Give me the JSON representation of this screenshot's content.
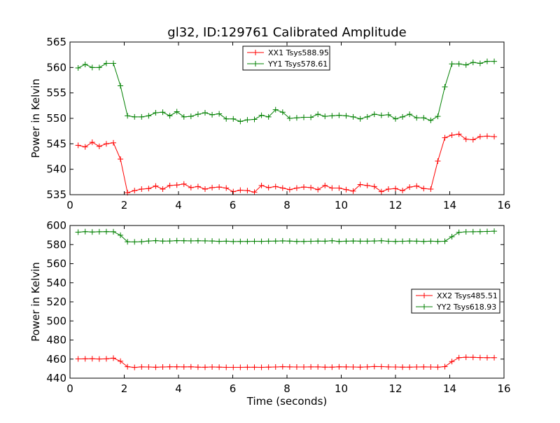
{
  "figure": {
    "title": "gl32, ID:129761 Calibrated Amplitude"
  },
  "chart_data": [
    {
      "type": "line",
      "title": "gl32, ID:129761 Calibrated Amplitude",
      "xlabel": "",
      "ylabel": "Power in Kelvin",
      "xlim": [
        0,
        16
      ],
      "ylim": [
        535,
        565
      ],
      "xticks": [
        "0",
        "2",
        "4",
        "6",
        "8",
        "10",
        "12",
        "14",
        "16"
      ],
      "yticks": [
        "535",
        "540",
        "545",
        "550",
        "555",
        "560",
        "565"
      ],
      "legend_position": "upper-center",
      "grid": false,
      "x": [
        0.3,
        0.56,
        0.82,
        1.08,
        1.34,
        1.6,
        1.86,
        2.12,
        2.38,
        2.64,
        2.9,
        3.16,
        3.42,
        3.68,
        3.94,
        4.2,
        4.46,
        4.72,
        4.98,
        5.24,
        5.5,
        5.76,
        6.02,
        6.28,
        6.54,
        6.8,
        7.06,
        7.32,
        7.58,
        7.84,
        8.1,
        8.36,
        8.62,
        8.88,
        9.14,
        9.4,
        9.66,
        9.92,
        10.18,
        10.44,
        10.7,
        10.96,
        11.22,
        11.48,
        11.74,
        12.0,
        12.26,
        12.52,
        12.78,
        13.04,
        13.3,
        13.56,
        13.82,
        14.08,
        14.34,
        14.6,
        14.86,
        15.12,
        15.38,
        15.64
      ],
      "series": [
        {
          "name": "XX1 Tsys588.95",
          "color": "#ff0000",
          "values": [
            544.7,
            544.4,
            545.3,
            544.5,
            545.0,
            545.2,
            542.0,
            535.4,
            535.8,
            536.1,
            536.2,
            536.7,
            536.1,
            536.8,
            536.9,
            537.1,
            536.4,
            536.6,
            536.1,
            536.4,
            536.5,
            536.3,
            535.6,
            535.9,
            535.8,
            535.5,
            536.8,
            536.4,
            536.6,
            536.3,
            536.0,
            536.3,
            536.5,
            536.4,
            536.0,
            536.8,
            536.3,
            536.3,
            536.0,
            535.7,
            537.0,
            536.8,
            536.6,
            535.6,
            536.1,
            536.2,
            535.8,
            536.5,
            536.7,
            536.2,
            536.1,
            541.6,
            546.2,
            546.7,
            546.9,
            545.9,
            545.8,
            546.4,
            546.5,
            546.4
          ]
        },
        {
          "name": "YY1 Tsys578.61",
          "color": "#008000",
          "values": [
            559.9,
            560.6,
            560.0,
            560.0,
            560.8,
            560.8,
            556.4,
            550.5,
            550.3,
            550.3,
            550.5,
            551.1,
            551.2,
            550.5,
            551.3,
            550.3,
            550.4,
            550.8,
            551.1,
            550.7,
            550.9,
            549.9,
            549.9,
            549.4,
            549.7,
            549.8,
            550.6,
            550.3,
            551.7,
            551.2,
            550.0,
            550.1,
            550.2,
            550.2,
            550.8,
            550.4,
            550.5,
            550.6,
            550.5,
            550.3,
            549.9,
            550.3,
            550.8,
            550.6,
            550.7,
            549.9,
            550.3,
            550.8,
            550.1,
            550.1,
            549.6,
            550.4,
            556.2,
            560.7,
            560.7,
            560.5,
            561.0,
            560.8,
            561.2,
            561.2
          ]
        }
      ]
    },
    {
      "type": "line",
      "title": "",
      "xlabel": "Time (seconds)",
      "ylabel": "Power in Kelvin",
      "xlim": [
        0,
        16
      ],
      "ylim": [
        440,
        600
      ],
      "xticks": [
        "0",
        "2",
        "4",
        "6",
        "8",
        "10",
        "12",
        "14",
        "16"
      ],
      "yticks": [
        "440",
        "460",
        "480",
        "500",
        "520",
        "540",
        "560",
        "580",
        "600"
      ],
      "legend_position": "center-right",
      "grid": false,
      "x": [
        0.3,
        0.56,
        0.82,
        1.08,
        1.34,
        1.6,
        1.86,
        2.12,
        2.38,
        2.64,
        2.9,
        3.16,
        3.42,
        3.68,
        3.94,
        4.2,
        4.46,
        4.72,
        4.98,
        5.24,
        5.5,
        5.76,
        6.02,
        6.28,
        6.54,
        6.8,
        7.06,
        7.32,
        7.58,
        7.84,
        8.1,
        8.36,
        8.62,
        8.88,
        9.14,
        9.4,
        9.66,
        9.92,
        10.18,
        10.44,
        10.7,
        10.96,
        11.22,
        11.48,
        11.74,
        12.0,
        12.26,
        12.52,
        12.78,
        13.04,
        13.3,
        13.56,
        13.82,
        14.08,
        14.34,
        14.6,
        14.86,
        15.12,
        15.38,
        15.64
      ],
      "series": [
        {
          "name": "XX2 Tsys485.51",
          "color": "#ff0000",
          "values": [
            460.2,
            460.3,
            460.4,
            460.1,
            460.3,
            461.0,
            457.8,
            452.0,
            451.3,
            451.8,
            451.7,
            451.5,
            451.7,
            451.9,
            451.9,
            451.8,
            451.9,
            451.6,
            451.5,
            451.7,
            451.6,
            451.4,
            451.4,
            451.4,
            451.5,
            451.5,
            451.4,
            451.6,
            451.7,
            452.0,
            451.8,
            451.7,
            451.7,
            451.8,
            451.8,
            451.6,
            451.6,
            451.9,
            451.8,
            451.7,
            451.6,
            451.8,
            452.2,
            452.1,
            451.8,
            451.7,
            451.6,
            451.6,
            451.7,
            451.8,
            451.7,
            451.6,
            452.1,
            457.4,
            461.5,
            461.9,
            461.8,
            461.6,
            461.5,
            461.5
          ]
        },
        {
          "name": "YY2 Tsys618.93",
          "color": "#008000",
          "values": [
            593.0,
            593.6,
            593.2,
            593.5,
            593.6,
            593.5,
            589.8,
            582.9,
            582.8,
            583.0,
            583.8,
            584.1,
            583.7,
            583.8,
            584.1,
            584.0,
            583.9,
            584.0,
            583.9,
            583.8,
            583.4,
            583.6,
            583.2,
            583.3,
            583.3,
            583.5,
            583.4,
            583.6,
            583.7,
            583.9,
            583.7,
            583.3,
            583.3,
            583.5,
            583.7,
            583.6,
            584.0,
            583.3,
            583.6,
            583.8,
            583.6,
            583.6,
            583.8,
            584.0,
            583.5,
            583.3,
            583.5,
            583.8,
            583.6,
            583.3,
            583.6,
            583.3,
            583.5,
            588.3,
            592.8,
            593.4,
            593.5,
            593.6,
            593.8,
            594.0
          ]
        }
      ]
    }
  ]
}
